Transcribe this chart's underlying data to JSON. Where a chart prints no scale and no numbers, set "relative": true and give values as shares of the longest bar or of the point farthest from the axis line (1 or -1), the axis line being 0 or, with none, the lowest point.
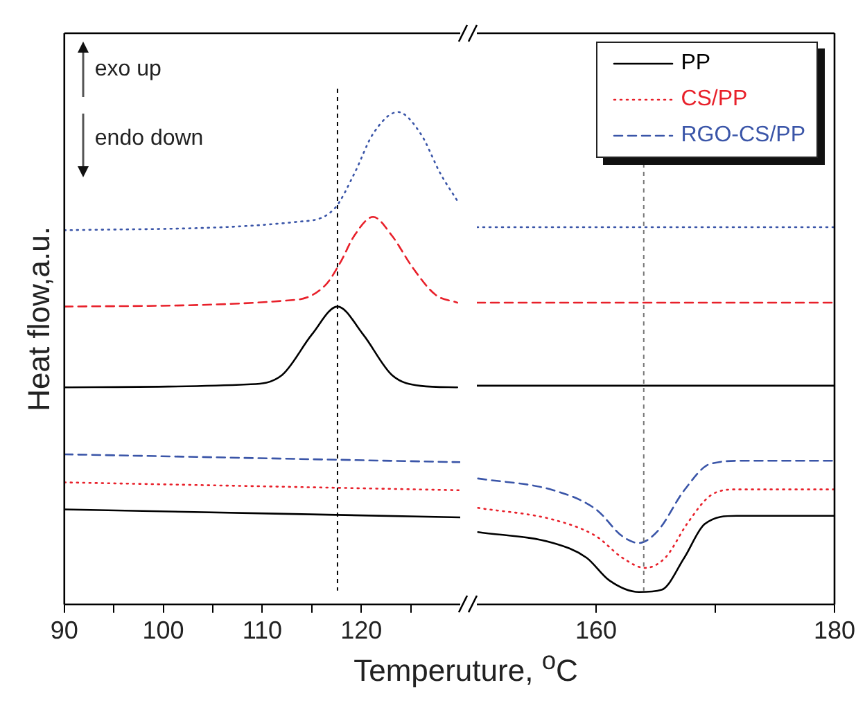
{
  "chart_data": [
    {
      "type": "line",
      "relative": true,
      "ylabel": "Heat flow,a.u.",
      "xlabel": "Temperuture, $^{o}$C",
      "xlim": [
        90,
        130
      ],
      "xticks": [
        90,
        {
          "value": 95,
          "label": null
        },
        100,
        {
          "value": 105,
          "label": null
        },
        110,
        {
          "value": 115,
          "label": null
        },
        120,
        {
          "value": 125,
          "label": null
        }
      ],
      "tick_labels": "x",
      "grid": false,
      "annotations": [
        "exo up",
        "endo down"
      ],
      "ref_lines": [
        {
          "axis": "x",
          "value": 117.6,
          "color": "#000000",
          "line_style": "dashed"
        }
      ],
      "series": [
        {
          "color": "#3a55a8",
          "line_style": "dotted",
          "x": [
            90,
            113.5,
            117.3,
            119.3,
            121.2,
            123.7,
            126,
            128,
            129.7
          ],
          "values": [
            0.76,
            0.777,
            0.804,
            0.875,
            0.956,
            1,
            0.956,
            0.875,
            0.82
          ]
        },
        {
          "color": "#e8202a",
          "line_style": "dashed",
          "x": [
            90,
            113.5,
            116.4,
            117.9,
            119.3,
            121.2,
            123.1,
            125.2,
            127.5,
            129.7
          ],
          "values": [
            0.605,
            0.619,
            0.649,
            0.695,
            0.749,
            0.787,
            0.749,
            0.684,
            0.629,
            0.613
          ]
        },
        {
          "color": "#000000",
          "line_style": "solid",
          "x": [
            90,
            108.5,
            112,
            115,
            117.6,
            120.2,
            123.1,
            126,
            129.7
          ],
          "values": [
            0.441,
            0.447,
            0.466,
            0.548,
            0.605,
            0.548,
            0.466,
            0.444,
            0.441
          ]
        },
        {
          "color": "#3a55a8",
          "line_style": "dashed",
          "x": [
            90,
            130
          ],
          "values": [
            0.305,
            0.289
          ]
        },
        {
          "color": "#e8202a",
          "line_style": "dotted",
          "x": [
            90,
            130
          ],
          "values": [
            0.248,
            0.232
          ]
        },
        {
          "color": "#000000",
          "line_style": "solid",
          "x": [
            90,
            130
          ],
          "values": [
            0.193,
            0.177
          ]
        }
      ]
    },
    {
      "type": "line",
      "relative": true,
      "xlim": [
        150,
        180
      ],
      "xticks": [
        160,
        {
          "value": 170,
          "label": null
        },
        180
      ],
      "tick_labels": "x",
      "grid": false,
      "legend": "top right",
      "ref_lines": [
        {
          "axis": "x",
          "value": 164,
          "color": "#777777",
          "line_style": "dashed"
        }
      ],
      "series": [
        {
          "name": "PP",
          "color": "#000000",
          "line_style": "solid",
          "x": [
            150.1,
            156.4,
            159.2,
            161.1,
            163.6,
            165.5,
            167.4,
            169.1,
            171.8,
            180
          ],
          "values": [
            0.192,
            0.163,
            0.124,
            0.064,
            0.033,
            0.039,
            0.124,
            0.213,
            0.235,
            0.235
          ]
        },
        {
          "name": "CS/PP",
          "color": "#e8202a",
          "line_style": "dotted",
          "x": [
            150.1,
            156.4,
            160,
            162.2,
            164.1,
            165.8,
            167.7,
            169.6,
            171.8,
            180
          ],
          "values": [
            0.256,
            0.225,
            0.181,
            0.124,
            0.097,
            0.124,
            0.217,
            0.289,
            0.305,
            0.305
          ]
        },
        {
          "name": "RGO-CS/PP",
          "color": "#3a55a8",
          "line_style": "dashed",
          "x": [
            150.1,
            156.4,
            160,
            162.2,
            163.6,
            165.2,
            167.4,
            169.6,
            172.5,
            180
          ],
          "values": [
            0.334,
            0.303,
            0.252,
            0.181,
            0.163,
            0.196,
            0.303,
            0.373,
            0.381,
            0.381
          ]
        },
        {
          "color": "#3a55a8",
          "line_style": "dotted",
          "x": [
            150,
            180
          ],
          "values": [
            1,
            1
          ]
        },
        {
          "color": "#e8202a",
          "line_style": "dashed",
          "x": [
            150,
            180
          ],
          "values": [
            0.8,
            0.8
          ]
        },
        {
          "color": "#000000",
          "line_style": "solid",
          "x": [
            150,
            180
          ],
          "values": [
            0.58,
            0.58
          ]
        }
      ]
    }
  ]
}
